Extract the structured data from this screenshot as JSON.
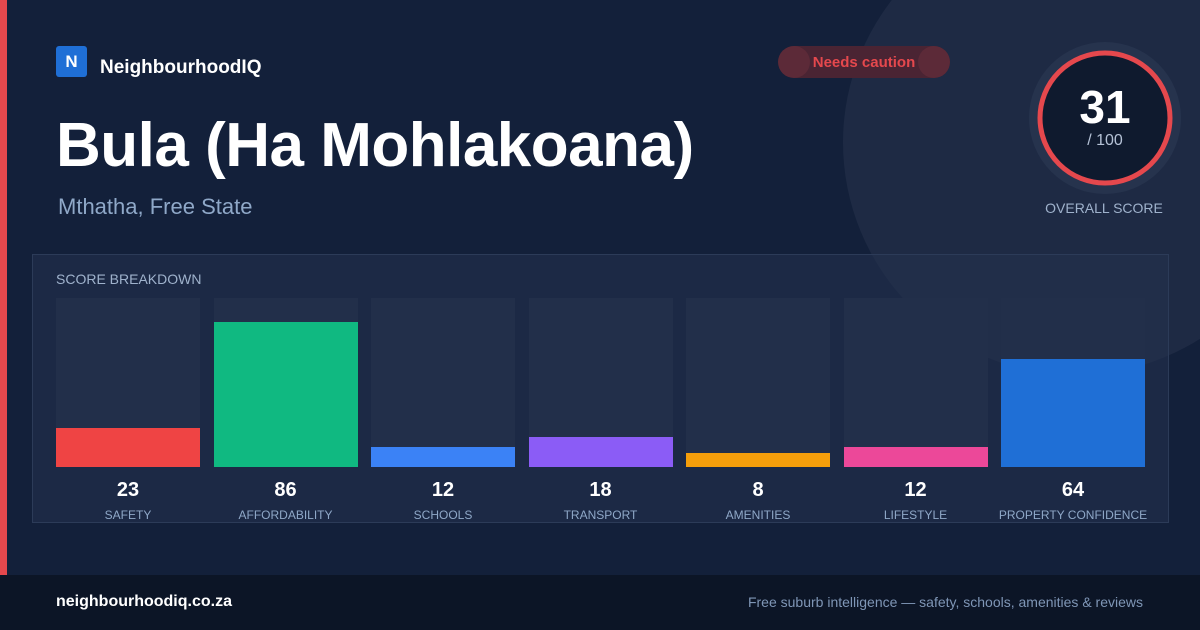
{
  "brand": {
    "logo_letter": "N",
    "name": "NeighbourhoodIQ"
  },
  "status_badge": {
    "label": "Needs caution"
  },
  "suburb": {
    "name": "Bula (Ha Mohlakoana)",
    "location": "Mthatha, Free State"
  },
  "overall": {
    "score": "31",
    "max_label": "/ 100",
    "score_fraction": 0.31,
    "label": "OVERALL SCORE",
    "ring_color": "#e5484d"
  },
  "breakdown": {
    "title": "SCORE BREAKDOWN",
    "items": [
      {
        "key": "safety",
        "label": "SAFETY",
        "value": "23",
        "fill_fraction": 0.23,
        "color": "#ef4444"
      },
      {
        "key": "affordability",
        "label": "AFFORDABILITY",
        "value": "86",
        "fill_fraction": 0.86,
        "color": "#10b981"
      },
      {
        "key": "schools",
        "label": "SCHOOLS",
        "value": "12",
        "fill_fraction": 0.12,
        "color": "#3b82f6"
      },
      {
        "key": "transport",
        "label": "TRANSPORT",
        "value": "18",
        "fill_fraction": 0.18,
        "color": "#8b5cf6"
      },
      {
        "key": "amenities",
        "label": "AMENITIES",
        "value": "8",
        "fill_fraction": 0.08,
        "color": "#f59e0b"
      },
      {
        "key": "lifestyle",
        "label": "LIFESTYLE",
        "value": "12",
        "fill_fraction": 0.12,
        "color": "#ec4899"
      },
      {
        "key": "property-confidence",
        "label": "PROPERTY CONFIDENCE",
        "value": "64",
        "fill_fraction": 0.64,
        "color": "#1f6fd6"
      }
    ]
  },
  "footer": {
    "domain": "neighbourhoodiq.co.za",
    "tagline": "Free suburb intelligence — safety, schools, amenities & reviews"
  },
  "colors": {
    "background": "#13203a",
    "accent_red": "#e5484d",
    "brand_blue": "#1f6fd6"
  }
}
